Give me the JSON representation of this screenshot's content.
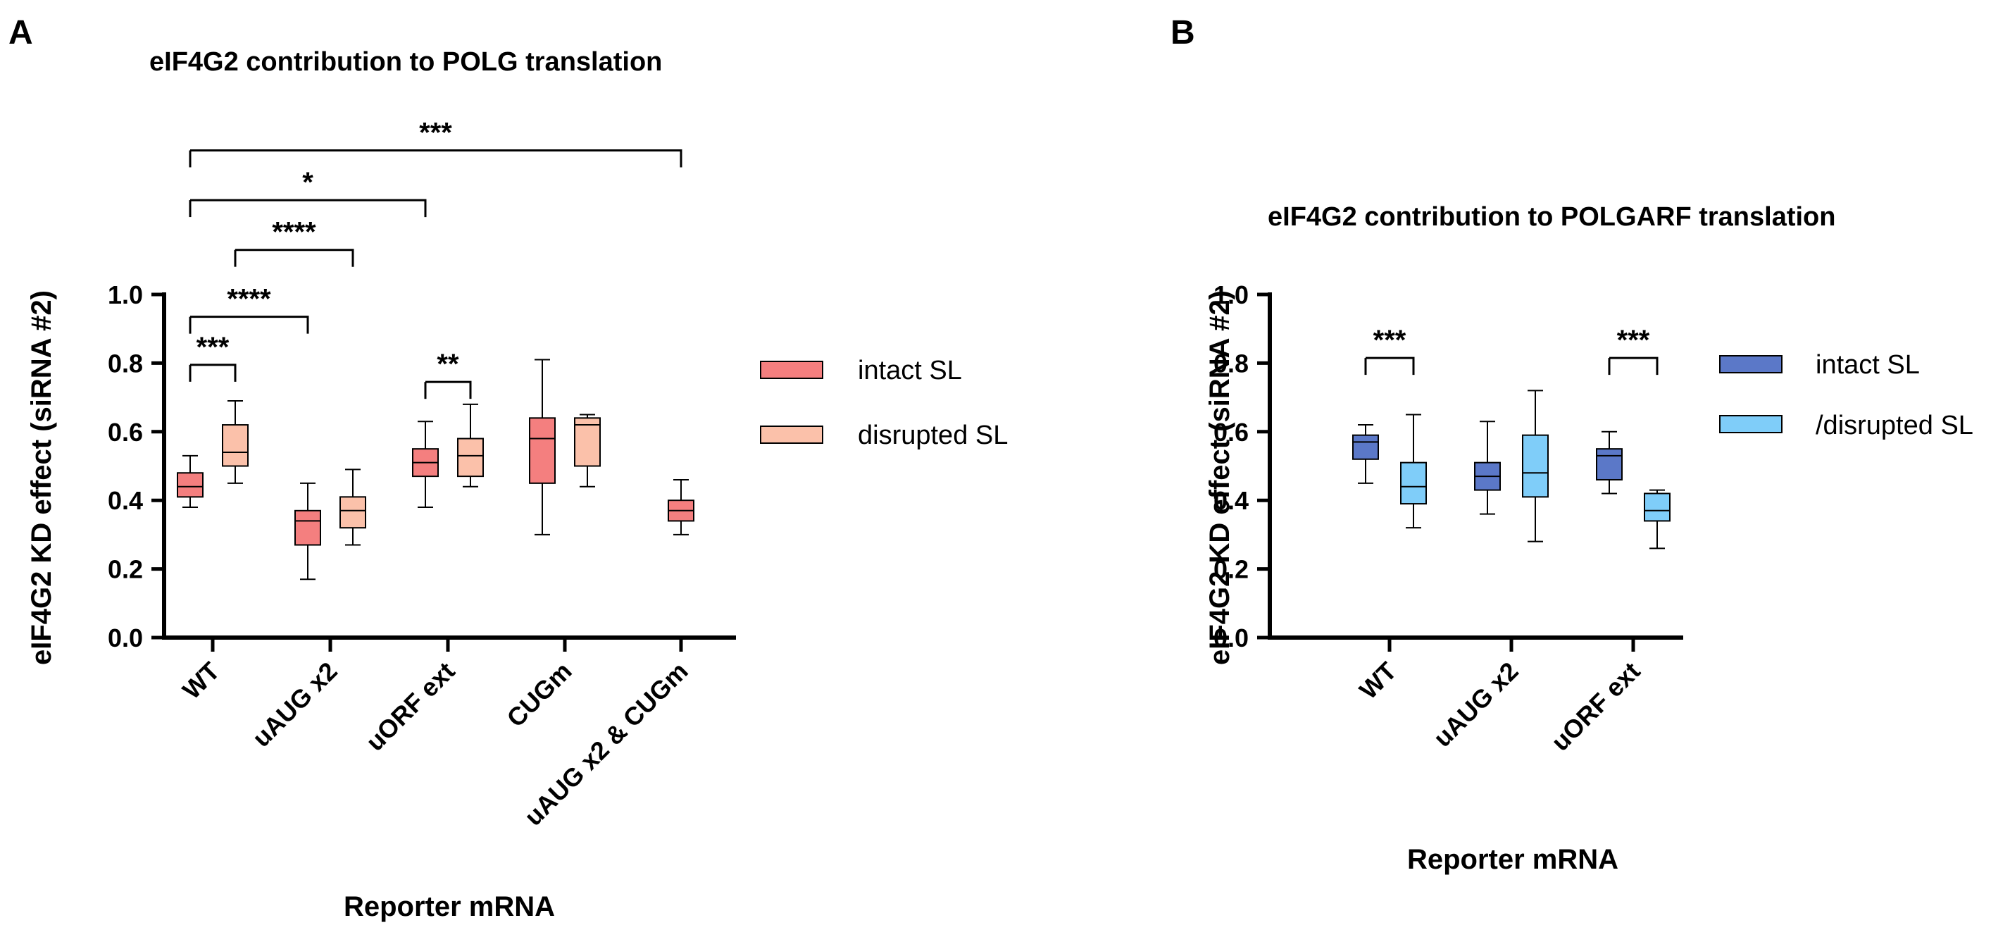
{
  "chart_data": [
    {
      "panel": "A",
      "type": "box",
      "title": "eIF4G2 contribution to POLG translation",
      "xlabel": "Reporter mRNA",
      "ylabel": "eIF4G2 KD effect (siRNA #2)",
      "ylim": [
        0,
        1.0
      ],
      "yticks": [
        0.0,
        0.2,
        0.4,
        0.6,
        0.8,
        1.0
      ],
      "ytick_labels": [
        "0.0",
        "0.2",
        "0.4",
        "0.6",
        "0.8",
        "1.0"
      ],
      "categories": [
        "WT",
        "uAUG x2",
        "uORF ext",
        "CUGm",
        "uAUG x2 & CUGm"
      ],
      "legend_position": "right",
      "series": [
        {
          "name": "intact SL",
          "color": "#F47F7F",
          "boxes": [
            {
              "min": 0.38,
              "q1": 0.41,
              "median": 0.44,
              "q3": 0.48,
              "max": 0.53
            },
            {
              "min": 0.17,
              "q1": 0.27,
              "median": 0.34,
              "q3": 0.37,
              "max": 0.45
            },
            {
              "min": 0.38,
              "q1": 0.47,
              "median": 0.51,
              "q3": 0.55,
              "max": 0.63
            },
            {
              "min": 0.3,
              "q1": 0.45,
              "median": 0.58,
              "q3": 0.64,
              "max": 0.81
            },
            {
              "min": 0.3,
              "q1": 0.34,
              "median": 0.37,
              "q3": 0.4,
              "max": 0.46
            }
          ]
        },
        {
          "name": "disrupted SL",
          "color": "#FBC1AA",
          "boxes": [
            {
              "min": 0.45,
              "q1": 0.5,
              "median": 0.54,
              "q3": 0.62,
              "max": 0.69
            },
            {
              "min": 0.27,
              "q1": 0.32,
              "median": 0.37,
              "q3": 0.41,
              "max": 0.49
            },
            {
              "min": 0.44,
              "q1": 0.47,
              "median": 0.53,
              "q3": 0.58,
              "max": 0.68
            },
            {
              "min": 0.44,
              "q1": 0.5,
              "median": 0.62,
              "q3": 0.64,
              "max": 0.65
            },
            null
          ]
        }
      ],
      "significance": [
        {
          "label": "***",
          "from": [
            0,
            0
          ],
          "to": [
            0,
            1
          ],
          "level": 0.795
        },
        {
          "label": "****",
          "from": [
            0,
            0
          ],
          "to": [
            1,
            0
          ],
          "level": 0.935
        },
        {
          "label": "****",
          "from": [
            0,
            1
          ],
          "to": [
            1,
            1
          ],
          "level": 1.13
        },
        {
          "label": "*",
          "from": [
            0,
            0
          ],
          "to": [
            2,
            0
          ],
          "level": 1.275
        },
        {
          "label": "***",
          "from": [
            0,
            0
          ],
          "to": [
            4,
            0
          ],
          "level": 1.42
        },
        {
          "label": "**",
          "from": [
            2,
            0
          ],
          "to": [
            2,
            1
          ],
          "level": 0.745
        }
      ]
    },
    {
      "panel": "B",
      "type": "box",
      "title": "eIF4G2 contribution to POLGARF translation",
      "xlabel": "Reporter mRNA",
      "ylabel": "eIF4G2 KD effect (siRNA #2)",
      "ylim": [
        0,
        1.0
      ],
      "yticks": [
        0.0,
        0.2,
        0.4,
        0.6,
        0.8,
        1.0
      ],
      "ytick_labels": [
        "0.0",
        "0.2",
        "0.4",
        "0.6",
        "0.8",
        "1.0"
      ],
      "categories": [
        "WT",
        "uAUG x2",
        "uORF ext"
      ],
      "legend_position": "right",
      "series": [
        {
          "name": "intact SL",
          "color": "#5B78C8",
          "boxes": [
            {
              "min": 0.45,
              "q1": 0.52,
              "median": 0.57,
              "q3": 0.59,
              "max": 0.62
            },
            {
              "min": 0.36,
              "q1": 0.43,
              "median": 0.47,
              "q3": 0.51,
              "max": 0.63
            },
            {
              "min": 0.42,
              "q1": 0.46,
              "median": 0.53,
              "q3": 0.55,
              "max": 0.6
            }
          ]
        },
        {
          "name": "/disrupted SL",
          "color": "#7FCDF9",
          "boxes": [
            {
              "min": 0.32,
              "q1": 0.39,
              "median": 0.44,
              "q3": 0.51,
              "max": 0.65
            },
            {
              "min": 0.28,
              "q1": 0.41,
              "median": 0.48,
              "q3": 0.59,
              "max": 0.72
            },
            {
              "min": 0.26,
              "q1": 0.34,
              "median": 0.37,
              "q3": 0.42,
              "max": 0.43
            }
          ]
        }
      ],
      "significance": [
        {
          "label": "***",
          "from": [
            0,
            0
          ],
          "to": [
            0,
            1
          ],
          "level": 0.815
        },
        {
          "label": "***",
          "from": [
            2,
            0
          ],
          "to": [
            2,
            1
          ],
          "level": 0.815
        }
      ]
    }
  ]
}
